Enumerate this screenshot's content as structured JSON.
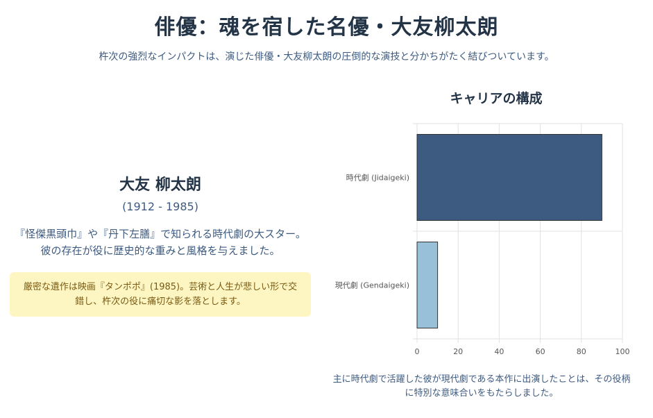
{
  "header": {
    "title": "俳優：魂を宿した名優・大友柳太朗",
    "subtitle": "杵次の強烈なインパクトは、演じた俳優・大友柳太朗の圧倒的な演技と分かちがたく結びついています。"
  },
  "actor": {
    "name": "大友 柳太朗",
    "years": "(1912 - 1985)",
    "description": "『怪傑黒頭巾』や『丹下左膳』で知られる時代劇の大スター。彼の存在が役に歴史的な重みと風格を与えました。",
    "note": "厳密な遺作は映画『タンポポ』(1985)。芸術と人生が悲しい形で交錯し、杵次の役に痛切な影を落とします。"
  },
  "chart_section": {
    "title": "キャリアの構成",
    "caption": "主に時代劇で活躍した彼が現代劇である本作に出演したことは、その役柄に特別な意味合いをもたらしました。"
  },
  "chart_data": {
    "type": "bar",
    "orientation": "horizontal",
    "categories": [
      "時代劇 (Jidaigeki)",
      "現代劇 (Gendaigeki)"
    ],
    "values": [
      90,
      10
    ],
    "colors": [
      "#3d5a80",
      "#98c1d9"
    ],
    "xlim": [
      0,
      100
    ],
    "xticks": [
      "0",
      "20",
      "40",
      "60",
      "80",
      "100"
    ],
    "grid": true
  }
}
